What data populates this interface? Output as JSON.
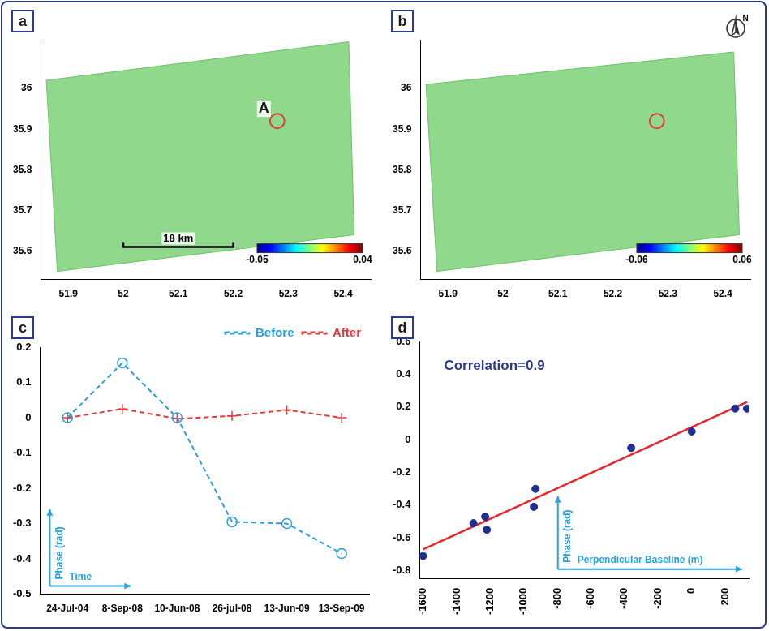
{
  "chart_data": [
    {
      "type": "map",
      "panel": "a",
      "xlim": [
        51.85,
        52.45
      ],
      "xticks": [
        51.9,
        52,
        52.1,
        52.2,
        52.3,
        52.4
      ],
      "ylim": [
        35.53,
        36.12
      ],
      "yticks": [
        35.6,
        35.7,
        35.8,
        35.9,
        36
      ],
      "footprint": {
        "x": [
          51.86,
          52.41,
          52.42,
          51.88
        ],
        "y": [
          36.02,
          36.115,
          35.64,
          35.55
        ],
        "color": "#8fd88c"
      },
      "points": [
        {
          "x": 52.28,
          "y": 35.92,
          "label": "A",
          "color": "#e8383d"
        }
      ],
      "scale_bar": {
        "x": [
          52,
          52.2
        ],
        "y": 35.61,
        "label": "18 km"
      },
      "colorbar": {
        "range": [
          -0.05,
          0.04
        ],
        "ticks": [
          -0.05,
          0.04
        ]
      }
    },
    {
      "type": "map",
      "panel": "b",
      "xlim": [
        51.85,
        52.45
      ],
      "xticks": [
        51.9,
        52,
        52.1,
        52.2,
        52.3,
        52.4
      ],
      "ylim": [
        35.53,
        36.12
      ],
      "yticks": [
        35.6,
        35.7,
        35.8,
        35.9,
        36
      ],
      "footprint": {
        "x": [
          51.86,
          52.42,
          52.43,
          51.88
        ],
        "y": [
          36.01,
          36.09,
          35.64,
          35.55
        ],
        "color": "#8fd88c"
      },
      "points": [
        {
          "x": 52.28,
          "y": 35.92,
          "color": "#e8383d"
        }
      ],
      "north": "N",
      "colorbar": {
        "range": [
          -0.06,
          0.06
        ],
        "ticks": [
          -0.06,
          0.06
        ]
      }
    },
    {
      "type": "line",
      "panel": "c",
      "categories": [
        "24-Jul-04",
        "8-Sep-08",
        "10-Jun-08",
        "26-jul-08",
        "13-Jun-09",
        "13-Sep-09"
      ],
      "series": [
        {
          "name": "Before",
          "color": "#2b9fe0",
          "values": [
            0,
            0.155,
            0,
            -0.295,
            -0.3,
            -0.385
          ],
          "marker": "circle",
          "line_style": "dashed"
        },
        {
          "name": "After",
          "color": "#e8383d",
          "values": [
            0,
            0.025,
            -0.003,
            0.005,
            0.022,
            0
          ],
          "marker": "plus",
          "line_style": "dashed"
        }
      ],
      "ylim": [
        -0.5,
        0.2
      ],
      "yticks": [
        -0.5,
        -0.4,
        -0.3,
        -0.2,
        -0.1,
        0,
        0.1,
        0.2
      ],
      "legend": "top-right",
      "grid": false,
      "x_label": "Time",
      "y_label": "Phase (rad)"
    },
    {
      "type": "scatter",
      "panel": "d",
      "x": [
        -1600,
        -1300,
        -1230,
        -1220,
        -940,
        -930,
        -360,
        0,
        260,
        330
      ],
      "values": [
        -0.71,
        -0.51,
        -0.47,
        -0.55,
        -0.41,
        -0.3,
        -0.05,
        0.05,
        0.19,
        0.19
      ],
      "color": "#1f2f8f",
      "fit": {
        "x": [
          -1600,
          330
        ],
        "y": [
          -0.67,
          0.23
        ],
        "color": "#e8262b"
      },
      "annotation": "Correlation=0.9",
      "xlim": [
        -1620,
        340
      ],
      "xticks": [
        -1600,
        -1400,
        -1200,
        -1000,
        -800,
        -600,
        -400,
        -200,
        0,
        200
      ],
      "ylim": [
        -0.85,
        0.6
      ],
      "yticks": [
        -0.8,
        -0.6,
        -0.4,
        -0.2,
        0,
        0.2,
        0.4,
        0.6
      ],
      "grid": false,
      "x_label": "Perpendicular Baseline (m)",
      "y_label": "Phase (rad)"
    }
  ]
}
